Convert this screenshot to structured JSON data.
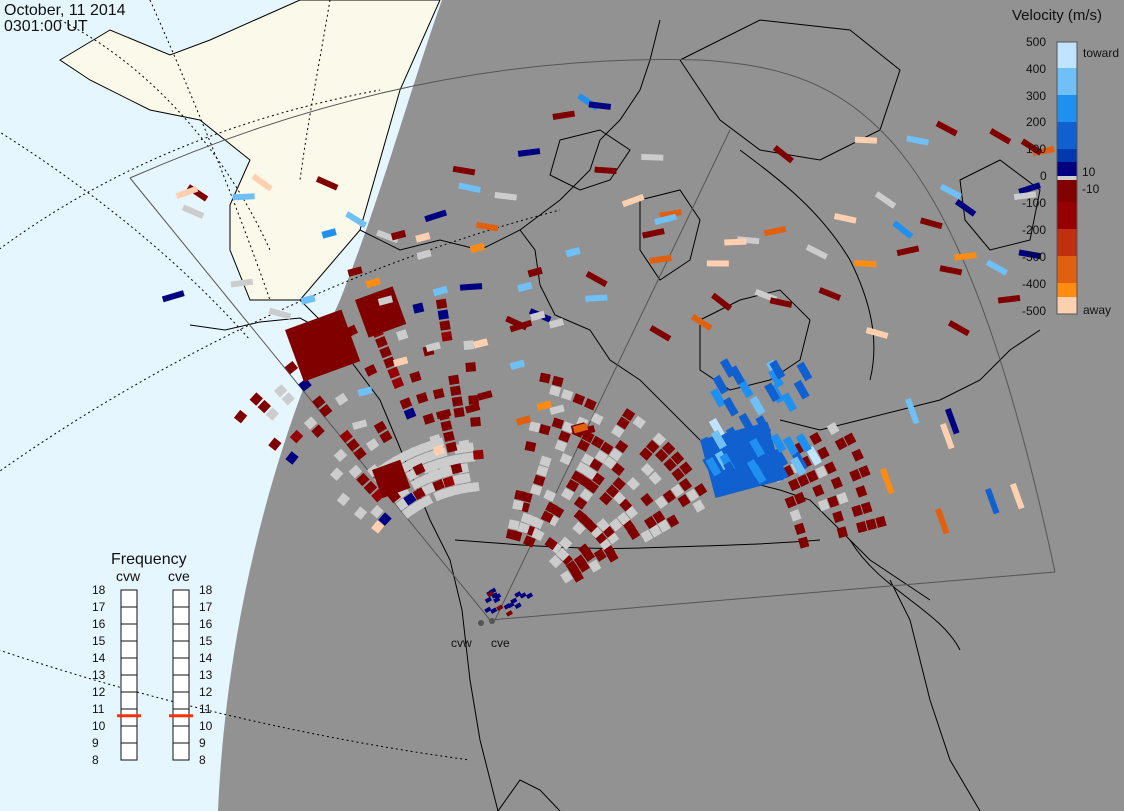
{
  "header": {
    "date": "October, 11 2014",
    "time": "0301:00 UT"
  },
  "colors": {
    "night": "#929292",
    "ocean_day": "#e6f6ff",
    "land_day": "#fbfaea",
    "gs_scatter": "#cccccc",
    "scale": [
      "#ffd0b0",
      "#ffa860",
      "#ff8c10",
      "#e06010",
      "#c03010",
      "#960000",
      "#800000",
      "#000080",
      "#0038b0",
      "#1060d0",
      "#2090f0",
      "#70c0f8",
      "#c0e4ff"
    ]
  },
  "velocity_scale": {
    "title": "Velocity (m/s)",
    "toward_label": "toward",
    "away_label": "away",
    "ticks": [
      "500",
      "400",
      "300",
      "200",
      "100",
      "10",
      "0",
      "-10",
      "-100",
      "-200",
      "-300",
      "-400",
      "-500"
    ]
  },
  "frequency_panel": {
    "title": "Frequency",
    "radars": [
      {
        "code": "cvw",
        "freq_mhz": 10.6
      },
      {
        "code": "cve",
        "freq_mhz": 10.6
      }
    ],
    "ticks": [
      "18",
      "17",
      "16",
      "15",
      "14",
      "13",
      "12",
      "11",
      "10",
      "9",
      "8"
    ],
    "indicator_color": "#ff3000"
  },
  "radar_sites": [
    {
      "code": "cvw"
    },
    {
      "code": "cve"
    }
  ]
}
